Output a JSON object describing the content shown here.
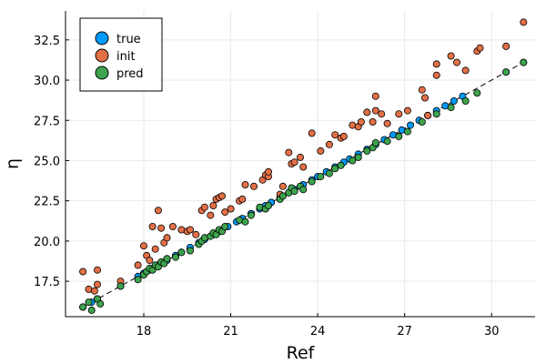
{
  "chart_data": {
    "type": "scatter",
    "xlabel": "Ref",
    "ylabel": "η",
    "xlim": [
      15.3,
      31.5
    ],
    "ylim": [
      15.3,
      34.3
    ],
    "x_ticks": [
      18,
      21,
      24,
      27,
      30
    ],
    "y_ticks": [
      17.5,
      20.0,
      22.5,
      25.0,
      27.5,
      30.0,
      32.5
    ],
    "x_tick_labels": [
      "18",
      "21",
      "24",
      "27",
      "30"
    ],
    "y_tick_labels": [
      "17.5",
      "20.0",
      "22.5",
      "25.0",
      "27.5",
      "30.0",
      "32.5"
    ],
    "grid": true,
    "legend": {
      "position": "top-left"
    },
    "reference_line": {
      "style": "dashed",
      "color": "#000000",
      "from": [
        15.9,
        15.9
      ],
      "to": [
        31.1,
        31.1
      ]
    },
    "series": [
      {
        "name": "true",
        "color": "#009AFA",
        "points": [
          [
            15.9,
            15.9
          ],
          [
            16.2,
            16.2
          ],
          [
            16.4,
            16.4
          ],
          [
            17.2,
            17.2
          ],
          [
            17.8,
            17.8
          ],
          [
            18.0,
            18.0
          ],
          [
            18.2,
            18.2
          ],
          [
            18.5,
            18.5
          ],
          [
            18.8,
            18.8
          ],
          [
            19.1,
            19.1
          ],
          [
            19.3,
            19.3
          ],
          [
            19.6,
            19.6
          ],
          [
            19.9,
            19.9
          ],
          [
            20.1,
            20.1
          ],
          [
            20.4,
            20.4
          ],
          [
            20.6,
            20.6
          ],
          [
            20.9,
            20.9
          ],
          [
            21.2,
            21.2
          ],
          [
            21.4,
            21.4
          ],
          [
            21.7,
            21.7
          ],
          [
            22.0,
            22.0
          ],
          [
            22.2,
            22.2
          ],
          [
            22.4,
            22.4
          ],
          [
            22.7,
            22.7
          ],
          [
            23.0,
            23.0
          ],
          [
            23.2,
            23.2
          ],
          [
            23.5,
            23.5
          ],
          [
            23.8,
            23.8
          ],
          [
            24.0,
            24.0
          ],
          [
            24.3,
            24.3
          ],
          [
            24.6,
            24.6
          ],
          [
            24.9,
            24.9
          ],
          [
            25.1,
            25.1
          ],
          [
            25.4,
            25.4
          ],
          [
            25.7,
            25.7
          ],
          [
            26.0,
            26.0
          ],
          [
            26.3,
            26.3
          ],
          [
            26.6,
            26.6
          ],
          [
            26.9,
            26.9
          ],
          [
            27.2,
            27.2
          ],
          [
            27.5,
            27.5
          ],
          [
            27.8,
            27.8
          ],
          [
            28.1,
            28.1
          ],
          [
            28.4,
            28.4
          ],
          [
            28.7,
            28.7
          ],
          [
            29.0,
            29.0
          ],
          [
            30.5,
            30.5
          ],
          [
            31.1,
            31.1
          ]
        ]
      },
      {
        "name": "init",
        "color": "#E26F46",
        "points": [
          [
            15.9,
            18.1
          ],
          [
            16.1,
            17.0
          ],
          [
            16.3,
            16.9
          ],
          [
            16.4,
            18.2
          ],
          [
            16.4,
            17.3
          ],
          [
            17.2,
            17.5
          ],
          [
            17.8,
            18.5
          ],
          [
            18.0,
            19.7
          ],
          [
            18.1,
            19.1
          ],
          [
            18.2,
            18.8
          ],
          [
            18.3,
            20.9
          ],
          [
            18.4,
            19.5
          ],
          [
            18.5,
            21.9
          ],
          [
            18.6,
            20.8
          ],
          [
            18.7,
            19.9
          ],
          [
            18.8,
            20.2
          ],
          [
            19.0,
            20.9
          ],
          [
            19.3,
            20.7
          ],
          [
            19.5,
            20.6
          ],
          [
            19.6,
            20.7
          ],
          [
            19.8,
            20.4
          ],
          [
            20.0,
            21.9
          ],
          [
            20.1,
            22.1
          ],
          [
            20.3,
            21.6
          ],
          [
            20.4,
            22.2
          ],
          [
            20.5,
            22.6
          ],
          [
            20.6,
            22.7
          ],
          [
            20.7,
            22.8
          ],
          [
            20.8,
            21.8
          ],
          [
            21.0,
            22.0
          ],
          [
            21.3,
            22.5
          ],
          [
            21.4,
            22.6
          ],
          [
            21.5,
            23.5
          ],
          [
            21.8,
            23.4
          ],
          [
            22.1,
            23.8
          ],
          [
            22.2,
            24.1
          ],
          [
            22.3,
            24.0
          ],
          [
            22.3,
            24.3
          ],
          [
            22.7,
            22.9
          ],
          [
            22.8,
            23.4
          ],
          [
            23.0,
            25.5
          ],
          [
            23.1,
            24.8
          ],
          [
            23.2,
            24.9
          ],
          [
            23.4,
            25.2
          ],
          [
            23.5,
            24.6
          ],
          [
            23.8,
            26.7
          ],
          [
            24.1,
            25.6
          ],
          [
            24.4,
            26.0
          ],
          [
            24.6,
            26.6
          ],
          [
            24.8,
            26.4
          ],
          [
            24.9,
            26.5
          ],
          [
            25.2,
            27.2
          ],
          [
            25.4,
            27.1
          ],
          [
            25.5,
            27.4
          ],
          [
            25.7,
            28.0
          ],
          [
            25.9,
            27.4
          ],
          [
            26.0,
            28.1
          ],
          [
            26.0,
            29.0
          ],
          [
            26.2,
            27.9
          ],
          [
            26.4,
            27.3
          ],
          [
            26.8,
            27.9
          ],
          [
            27.1,
            28.1
          ],
          [
            27.6,
            29.4
          ],
          [
            27.7,
            28.9
          ],
          [
            27.8,
            27.8
          ],
          [
            28.1,
            31.0
          ],
          [
            28.1,
            30.3
          ],
          [
            28.6,
            31.5
          ],
          [
            28.8,
            31.1
          ],
          [
            29.1,
            30.6
          ],
          [
            29.5,
            31.8
          ],
          [
            29.6,
            32.0
          ],
          [
            30.5,
            32.1
          ],
          [
            31.1,
            33.6
          ]
        ]
      },
      {
        "name": "pred",
        "color": "#3DA44D",
        "points": [
          [
            15.9,
            15.9
          ],
          [
            16.1,
            16.2
          ],
          [
            16.2,
            15.7
          ],
          [
            16.4,
            16.4
          ],
          [
            16.5,
            16.1
          ],
          [
            17.2,
            17.2
          ],
          [
            17.8,
            17.6
          ],
          [
            18.0,
            17.9
          ],
          [
            18.1,
            18.1
          ],
          [
            18.2,
            18.3
          ],
          [
            18.3,
            18.2
          ],
          [
            18.4,
            18.5
          ],
          [
            18.5,
            18.4
          ],
          [
            18.6,
            18.7
          ],
          [
            18.7,
            18.6
          ],
          [
            18.8,
            18.9
          ],
          [
            19.1,
            19.0
          ],
          [
            19.3,
            19.3
          ],
          [
            19.6,
            19.4
          ],
          [
            19.9,
            19.8
          ],
          [
            20.0,
            20.0
          ],
          [
            20.1,
            20.2
          ],
          [
            20.3,
            20.3
          ],
          [
            20.4,
            20.5
          ],
          [
            20.5,
            20.4
          ],
          [
            20.6,
            20.7
          ],
          [
            20.7,
            20.6
          ],
          [
            20.8,
            20.9
          ],
          [
            21.3,
            21.3
          ],
          [
            21.5,
            21.2
          ],
          [
            21.7,
            21.6
          ],
          [
            22.0,
            22.1
          ],
          [
            22.2,
            22.0
          ],
          [
            22.3,
            22.2
          ],
          [
            22.7,
            22.6
          ],
          [
            22.8,
            22.8
          ],
          [
            23.0,
            23.0
          ],
          [
            23.1,
            23.3
          ],
          [
            23.2,
            23.1
          ],
          [
            23.4,
            23.4
          ],
          [
            23.5,
            23.2
          ],
          [
            23.8,
            23.7
          ],
          [
            24.1,
            24.0
          ],
          [
            24.4,
            24.2
          ],
          [
            24.6,
            24.5
          ],
          [
            24.8,
            24.7
          ],
          [
            25.2,
            25.0
          ],
          [
            25.4,
            25.2
          ],
          [
            25.7,
            25.6
          ],
          [
            25.9,
            25.8
          ],
          [
            26.0,
            26.1
          ],
          [
            26.4,
            26.2
          ],
          [
            26.8,
            26.5
          ],
          [
            27.1,
            26.8
          ],
          [
            27.6,
            27.4
          ],
          [
            28.1,
            27.9
          ],
          [
            28.6,
            28.3
          ],
          [
            29.1,
            28.7
          ],
          [
            29.5,
            29.2
          ],
          [
            30.5,
            30.5
          ],
          [
            31.1,
            31.1
          ]
        ]
      }
    ]
  }
}
